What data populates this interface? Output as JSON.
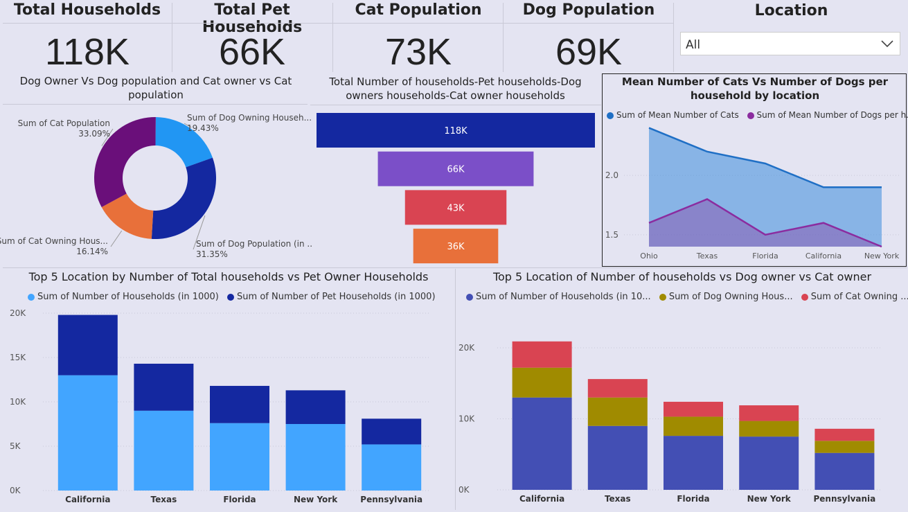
{
  "kpis": [
    {
      "title": "Total Households",
      "value": "118K"
    },
    {
      "title": "Total Pet Households",
      "value": "66K"
    },
    {
      "title": "Cat Population",
      "value": "73K"
    },
    {
      "title": "Dog Population",
      "value": "69K"
    }
  ],
  "filter": {
    "title": "Location",
    "selected": "All"
  },
  "colors": {
    "light_blue": "#42a5ff",
    "dark_blue": "#1428a0",
    "purple": "#6a0f7a",
    "orange": "#e8703a",
    "red": "#d94452",
    "olive": "#a08b00",
    "indigo": "#434fb4",
    "violet": "#7b4fc8"
  },
  "donut": {
    "title": "Dog Owner Vs Dog population and Cat owner vs Cat population",
    "slices": [
      {
        "label": "Sum of Dog Owning Househ...",
        "pct_label": "19.43%",
        "value": 19.43,
        "color": "#2196f3"
      },
      {
        "label": "Sum of Dog Population (in ...",
        "pct_label": "31.35%",
        "value": 31.35,
        "color": "#1428a0"
      },
      {
        "label": "Sum of Cat Owning Hous...",
        "pct_label": "16.14%",
        "value": 16.14,
        "color": "#e8703a"
      },
      {
        "label": "Sum of Cat Population",
        "pct_label": "33.09%",
        "value": 33.09,
        "color": "#6a0f7a"
      }
    ]
  },
  "funnel": {
    "title": "Total Number of households-Pet households-Dog owners households-Cat owner households",
    "stages": [
      {
        "label": "118K",
        "value": 118,
        "color": "#1428a0"
      },
      {
        "label": "66K",
        "value": 66,
        "color": "#7b4fc8"
      },
      {
        "label": "43K",
        "value": 43,
        "color": "#d94452"
      },
      {
        "label": "36K",
        "value": 36,
        "color": "#e8703a"
      }
    ]
  },
  "chart_data": [
    {
      "type": "area",
      "title": "Mean Number of Cats Vs Number of Dogs per household by location",
      "categories": [
        "Ohio",
        "Texas",
        "Florida",
        "California",
        "New York"
      ],
      "y_ticks": [
        "1.5",
        "2.0"
      ],
      "ylim": [
        1.4,
        2.45
      ],
      "legend_position": "top",
      "series": [
        {
          "name": "Sum of Mean Number of Cats",
          "values": [
            2.4,
            2.2,
            2.1,
            1.9,
            1.9
          ],
          "color": "#1f6fc5"
        },
        {
          "name": "Sum of Mean Number of Dogs per h...",
          "values": [
            1.6,
            1.8,
            1.5,
            1.6,
            1.4
          ],
          "color": "#8b2c9f"
        }
      ]
    },
    {
      "type": "bar",
      "stacked": true,
      "title": "Top 5 Location by Number of Total households vs Pet Owner Households",
      "categories": [
        "California",
        "Texas",
        "Florida",
        "New York",
        "Pennsylvania"
      ],
      "y_ticks": [
        "0K",
        "5K",
        "10K",
        "15K",
        "20K"
      ],
      "ylim": [
        0,
        20000
      ],
      "legend_position": "top",
      "series": [
        {
          "name": "Sum of Number of Households (in 1000)",
          "values": [
            13000,
            9000,
            7600,
            7500,
            5200
          ],
          "color": "#42a5ff"
        },
        {
          "name": "Sum of Number of Pet Households (in 1000)",
          "values": [
            6800,
            5300,
            4200,
            3800,
            2900
          ],
          "color": "#1428a0"
        }
      ]
    },
    {
      "type": "bar",
      "stacked": true,
      "title": "Top 5 Location of Number of households vs Dog owner vs Cat owner",
      "categories": [
        "California",
        "Texas",
        "Florida",
        "New York",
        "Pennsylvania"
      ],
      "y_ticks": [
        "0K",
        "10K",
        "20K"
      ],
      "ylim": [
        0,
        20000
      ],
      "legend_position": "top",
      "series": [
        {
          "name": "Sum of Number of Households (in 10...",
          "values": [
            13000,
            9000,
            7600,
            7500,
            5200
          ],
          "color": "#434fb4"
        },
        {
          "name": "Sum of Dog Owning Hous...",
          "values": [
            4200,
            4000,
            2700,
            2200,
            1700
          ],
          "color": "#a08b00"
        },
        {
          "name": "Sum of Cat Owning ...",
          "values": [
            3700,
            2600,
            2100,
            2200,
            1700
          ],
          "color": "#d94452"
        }
      ]
    }
  ]
}
